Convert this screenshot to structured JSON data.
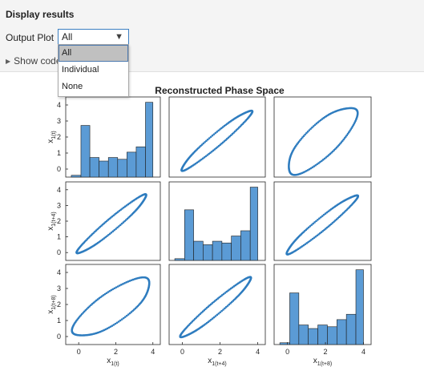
{
  "header": {
    "title": "Display results"
  },
  "output_plot": {
    "label": "Output Plot",
    "selected": "All",
    "options": [
      "All",
      "Individual",
      "None"
    ]
  },
  "show_code": {
    "label": "Show code"
  },
  "chart_data": {
    "type": "scatter-matrix",
    "title": "Reconstructed Phase Space",
    "variables": [
      "x1(t)",
      "x1(t+4)",
      "x1(t+8)"
    ],
    "axis_ticks": [
      0,
      2,
      4
    ],
    "axis_ticks_y": [
      0,
      1,
      2,
      3,
      4
    ],
    "xlim": [
      -0.7,
      4.4
    ],
    "ylim": [
      -0.5,
      4.5
    ],
    "histogram": {
      "bin_edges": [
        -0.4,
        0.12,
        0.6,
        1.1,
        1.6,
        2.1,
        2.6,
        3.1,
        3.6,
        4.0
      ],
      "counts": [
        0.1,
        2.9,
        1.1,
        0.9,
        1.1,
        1.0,
        1.4,
        1.7,
        4.2
      ]
    },
    "attractor_curves": {
      "lag4": {
        "center": [
          1.8,
          1.8
        ],
        "semi_major": 2.6,
        "semi_minor": 0.35,
        "angle_deg": 45
      },
      "lag8": {
        "center": [
          1.8,
          1.8
        ],
        "semi_major": 2.6,
        "semi_minor": 0.9,
        "angle_deg": 40
      }
    },
    "series_color": "#2e7cbf",
    "bar_color": "#5b9bd5"
  }
}
